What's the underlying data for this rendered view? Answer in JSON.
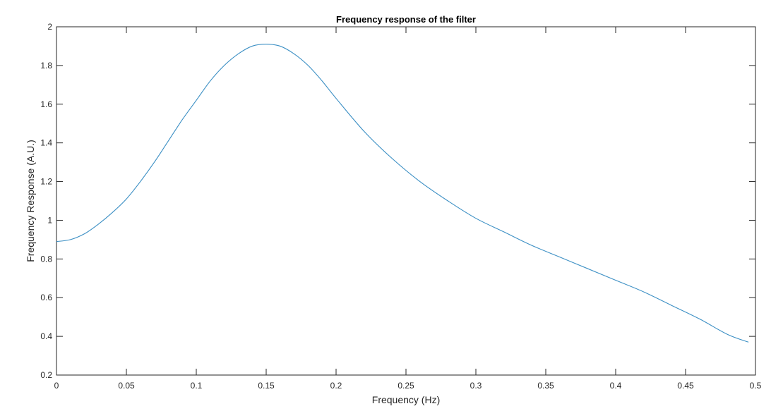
{
  "chart_data": {
    "type": "line",
    "title": "Frequency response of the filter",
    "xlabel": "Frequency (Hz)",
    "ylabel": "Frequency Response (A.U.)",
    "xlim": [
      0,
      0.5
    ],
    "ylim": [
      0.2,
      2
    ],
    "xticks": [
      0,
      0.05,
      0.1,
      0.15,
      0.2,
      0.25,
      0.3,
      0.35,
      0.4,
      0.45,
      0.5
    ],
    "xtick_labels": [
      "0",
      "0.05",
      "0.1",
      "0.15",
      "0.2",
      "0.25",
      "0.3",
      "0.35",
      "0.4",
      "0.45",
      "0.5"
    ],
    "yticks": [
      0.2,
      0.4,
      0.6,
      0.8,
      1,
      1.2,
      1.4,
      1.6,
      1.8,
      2
    ],
    "ytick_labels": [
      "0.2",
      "0.4",
      "0.6",
      "0.8",
      "1",
      "1.2",
      "1.4",
      "1.6",
      "1.8",
      "2"
    ],
    "grid": false,
    "line_color": "#3b8fc4",
    "series": [
      {
        "x": [
          0,
          0.01,
          0.02,
          0.03,
          0.04,
          0.05,
          0.06,
          0.07,
          0.08,
          0.09,
          0.1,
          0.11,
          0.12,
          0.13,
          0.14,
          0.15,
          0.16,
          0.17,
          0.18,
          0.19,
          0.2,
          0.22,
          0.24,
          0.26,
          0.28,
          0.3,
          0.32,
          0.34,
          0.36,
          0.38,
          0.4,
          0.42,
          0.44,
          0.46,
          0.48,
          0.495
        ],
        "y": [
          0.89,
          0.9,
          0.93,
          0.98,
          1.04,
          1.11,
          1.2,
          1.3,
          1.41,
          1.52,
          1.62,
          1.72,
          1.8,
          1.86,
          1.9,
          1.91,
          1.9,
          1.86,
          1.8,
          1.72,
          1.63,
          1.46,
          1.32,
          1.2,
          1.1,
          1.01,
          0.94,
          0.87,
          0.81,
          0.75,
          0.69,
          0.63,
          0.56,
          0.49,
          0.41,
          0.37
        ]
      }
    ]
  }
}
